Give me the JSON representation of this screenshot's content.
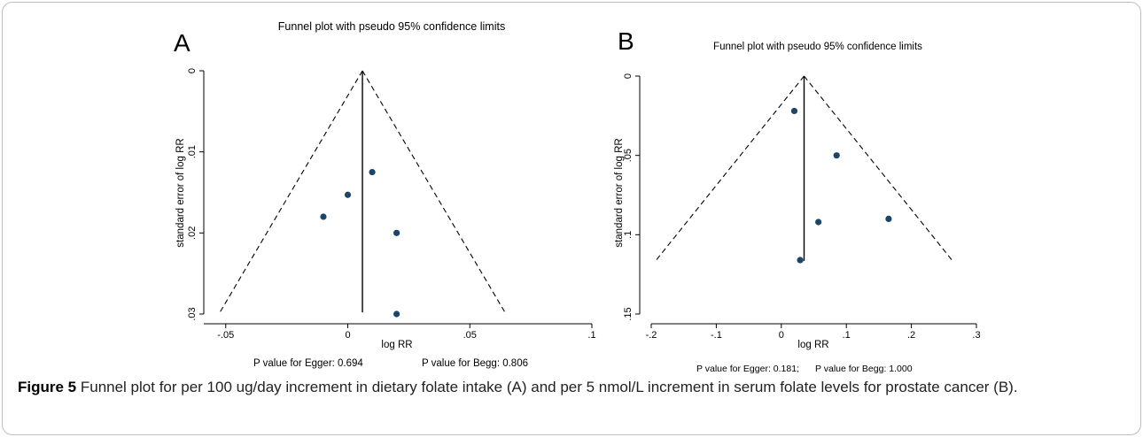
{
  "chart_data": [
    {
      "type": "scatter",
      "panel": "A",
      "title": "Funnel plot with pseudo 95% confidence limits",
      "xlabel": "log RR",
      "ylabel": "standard error of log RR",
      "xlim": [
        -0.055,
        0.1
      ],
      "ylim": [
        0,
        0.03
      ],
      "y_reversed": true,
      "y_ticks_rotated": true,
      "grid": false,
      "x_ticks": [
        {
          "value": -0.05,
          "label": "-.05"
        },
        {
          "value": 0,
          "label": "0"
        },
        {
          "value": 0.05,
          "label": ".05"
        },
        {
          "value": 0.1,
          "label": ".1"
        }
      ],
      "y_ticks": [
        {
          "value": 0,
          "label": "0"
        },
        {
          "value": 0.01,
          "label": ".01"
        },
        {
          "value": 0.02,
          "label": ".02"
        },
        {
          "value": 0.03,
          "label": ".03"
        }
      ],
      "pooled": 0.006,
      "funnel_bottom_se": 0.0298,
      "points": [
        {
          "x": 0.01,
          "y": 0.0125
        },
        {
          "x": 0.0,
          "y": 0.0153
        },
        {
          "x": -0.01,
          "y": 0.018
        },
        {
          "x": 0.02,
          "y": 0.02
        },
        {
          "x": 0.02,
          "y": 0.03
        }
      ],
      "notes": [
        "P value for Egger: 0.694",
        "P value for Begg: 0.806"
      ]
    },
    {
      "type": "scatter",
      "panel": "B",
      "title": "Funnel plot with pseudo 95% confidence limits",
      "xlabel": "log RR",
      "ylabel": "standard error of log RR",
      "xlim": [
        -0.2,
        0.3
      ],
      "ylim": [
        0,
        0.15
      ],
      "y_reversed": true,
      "y_ticks_rotated": true,
      "grid": false,
      "x_ticks": [
        {
          "value": -0.2,
          "label": "-.2"
        },
        {
          "value": -0.1,
          "label": "-.1"
        },
        {
          "value": 0,
          "label": "0"
        },
        {
          "value": 0.1,
          "label": ".1"
        },
        {
          "value": 0.2,
          "label": ".2"
        },
        {
          "value": 0.3,
          "label": ".3"
        }
      ],
      "y_ticks": [
        {
          "value": 0,
          "label": "0"
        },
        {
          "value": 0.05,
          "label": ".05"
        },
        {
          "value": 0.1,
          "label": ".1"
        },
        {
          "value": 0.15,
          "label": ".15"
        }
      ],
      "pooled": 0.035,
      "funnel_bottom_se": 0.1165,
      "points": [
        {
          "x": 0.02,
          "y": 0.022
        },
        {
          "x": 0.085,
          "y": 0.05
        },
        {
          "x": 0.057,
          "y": 0.092
        },
        {
          "x": 0.165,
          "y": 0.09
        },
        {
          "x": 0.029,
          "y": 0.116
        }
      ],
      "notes": [
        "P value for Egger: 0.181;",
        "P value for Begg: 1.000"
      ]
    }
  ],
  "colors": {
    "point": "#1c4569",
    "line": "#000000"
  },
  "caption": {
    "label": "Figure 5",
    "text": "Funnel plot for per 100 ug/day increment in dietary folate intake (A) and per 5 nmol/L increment in serum folate levels for prostate cancer (B)."
  }
}
